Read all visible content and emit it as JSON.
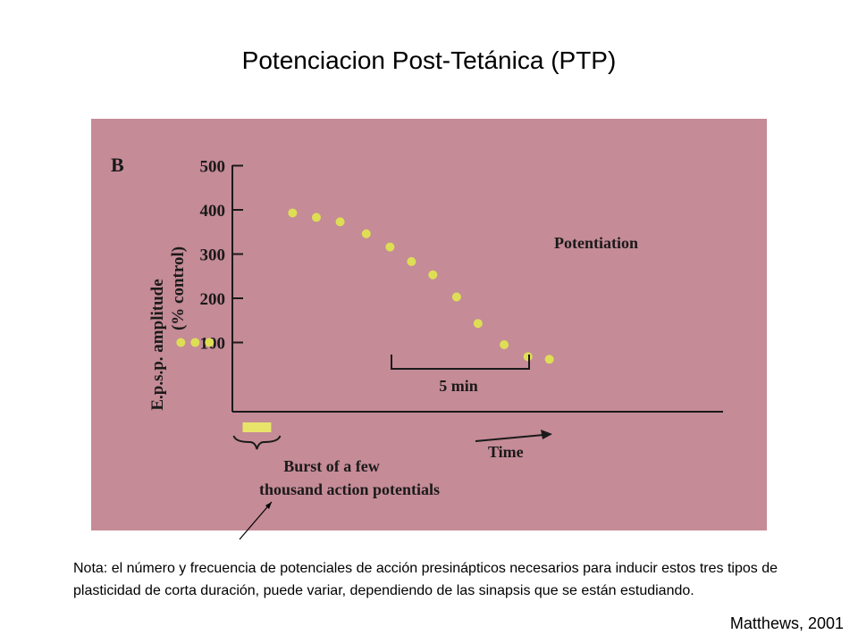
{
  "title": "Potenciacion Post-Tetánica (PTP)",
  "figure_label": "B",
  "note": "Nota: el número y frecuencia de potenciales de acción presinápticos necesarios para inducir estos tres tipos de plasticidad de corta duración, puede variar, dependiendo de las sinapsis que se están estudiando.",
  "citation": "Matthews, 2001",
  "colors": {
    "figure_background": "#c58b97",
    "data_points": "#dede55",
    "burst_bar": "#e8e46a",
    "ink": "#1a1a1a"
  },
  "chart_data": {
    "type": "scatter",
    "ylabel_line1": "E.p.s.p. amplitude",
    "ylabel_line2": "(% control)",
    "xlabel": "Time",
    "ylim": [
      0,
      500
    ],
    "yticks": [
      100,
      200,
      300,
      400,
      500
    ],
    "scale_bar_label": "5 min",
    "annotation": "Potentiation",
    "burst_label_line1": "Burst of a few",
    "burst_label_line2": "thousand action potentials",
    "x_unit": "min",
    "x": [
      -5.1,
      -4.5,
      -3.9,
      -0.4,
      0.6,
      1.6,
      2.7,
      3.7,
      4.6,
      5.5,
      6.5,
      7.4,
      8.5,
      9.5,
      10.4
    ],
    "values": [
      100,
      100,
      100,
      393,
      383,
      373,
      346,
      316,
      283,
      253,
      203,
      143,
      95,
      68,
      62
    ],
    "burst_x": [
      -2.5,
      -1.3
    ]
  }
}
